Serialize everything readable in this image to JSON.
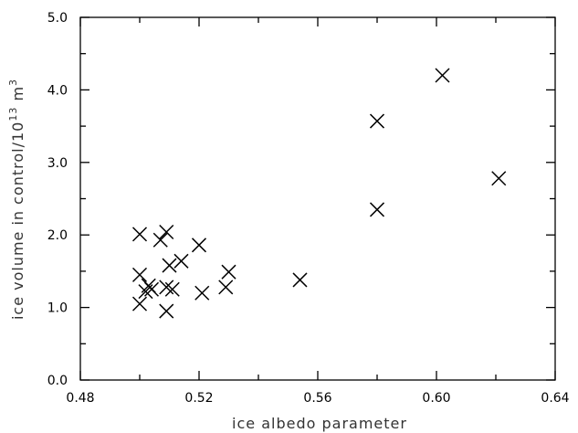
{
  "chart_data": {
    "type": "scatter",
    "title": "",
    "xlabel": "ice albedo parameter",
    "ylabel_main": "ice volume in control/10",
    "ylabel_exp1": "13",
    "ylabel_mid": " m",
    "ylabel_exp2": "3",
    "xlim": [
      0.48,
      0.64
    ],
    "ylim": [
      0.0,
      5.0
    ],
    "x_major_ticks": [
      0.48,
      0.52,
      0.56,
      0.6,
      0.64
    ],
    "x_tick_labels": [
      "0.48",
      "0.52",
      "0.56",
      "0.60",
      "0.64"
    ],
    "x_minor_ticks": [
      0.5,
      0.54,
      0.58,
      0.62
    ],
    "y_major_ticks": [
      0.0,
      1.0,
      2.0,
      3.0,
      4.0,
      5.0
    ],
    "y_tick_labels": [
      "0.0",
      "1.0",
      "2.0",
      "3.0",
      "4.0",
      "5.0"
    ],
    "y_minor_ticks": [
      0.5,
      1.5,
      2.5,
      3.5,
      4.5
    ],
    "grid": false,
    "marker": "x",
    "points": [
      {
        "x": 0.5,
        "y": 2.01
      },
      {
        "x": 0.5,
        "y": 1.45
      },
      {
        "x": 0.5,
        "y": 1.05
      },
      {
        "x": 0.502,
        "y": 1.22
      },
      {
        "x": 0.503,
        "y": 1.3
      },
      {
        "x": 0.504,
        "y": 1.25
      },
      {
        "x": 0.507,
        "y": 1.93
      },
      {
        "x": 0.509,
        "y": 2.04
      },
      {
        "x": 0.509,
        "y": 1.28
      },
      {
        "x": 0.509,
        "y": 0.95
      },
      {
        "x": 0.51,
        "y": 1.58
      },
      {
        "x": 0.511,
        "y": 1.25
      },
      {
        "x": 0.514,
        "y": 1.64
      },
      {
        "x": 0.52,
        "y": 1.86
      },
      {
        "x": 0.521,
        "y": 1.2
      },
      {
        "x": 0.529,
        "y": 1.28
      },
      {
        "x": 0.53,
        "y": 1.49
      },
      {
        "x": 0.554,
        "y": 1.38
      },
      {
        "x": 0.58,
        "y": 3.57
      },
      {
        "x": 0.58,
        "y": 2.35
      },
      {
        "x": 0.602,
        "y": 4.2
      },
      {
        "x": 0.621,
        "y": 2.78
      }
    ]
  }
}
